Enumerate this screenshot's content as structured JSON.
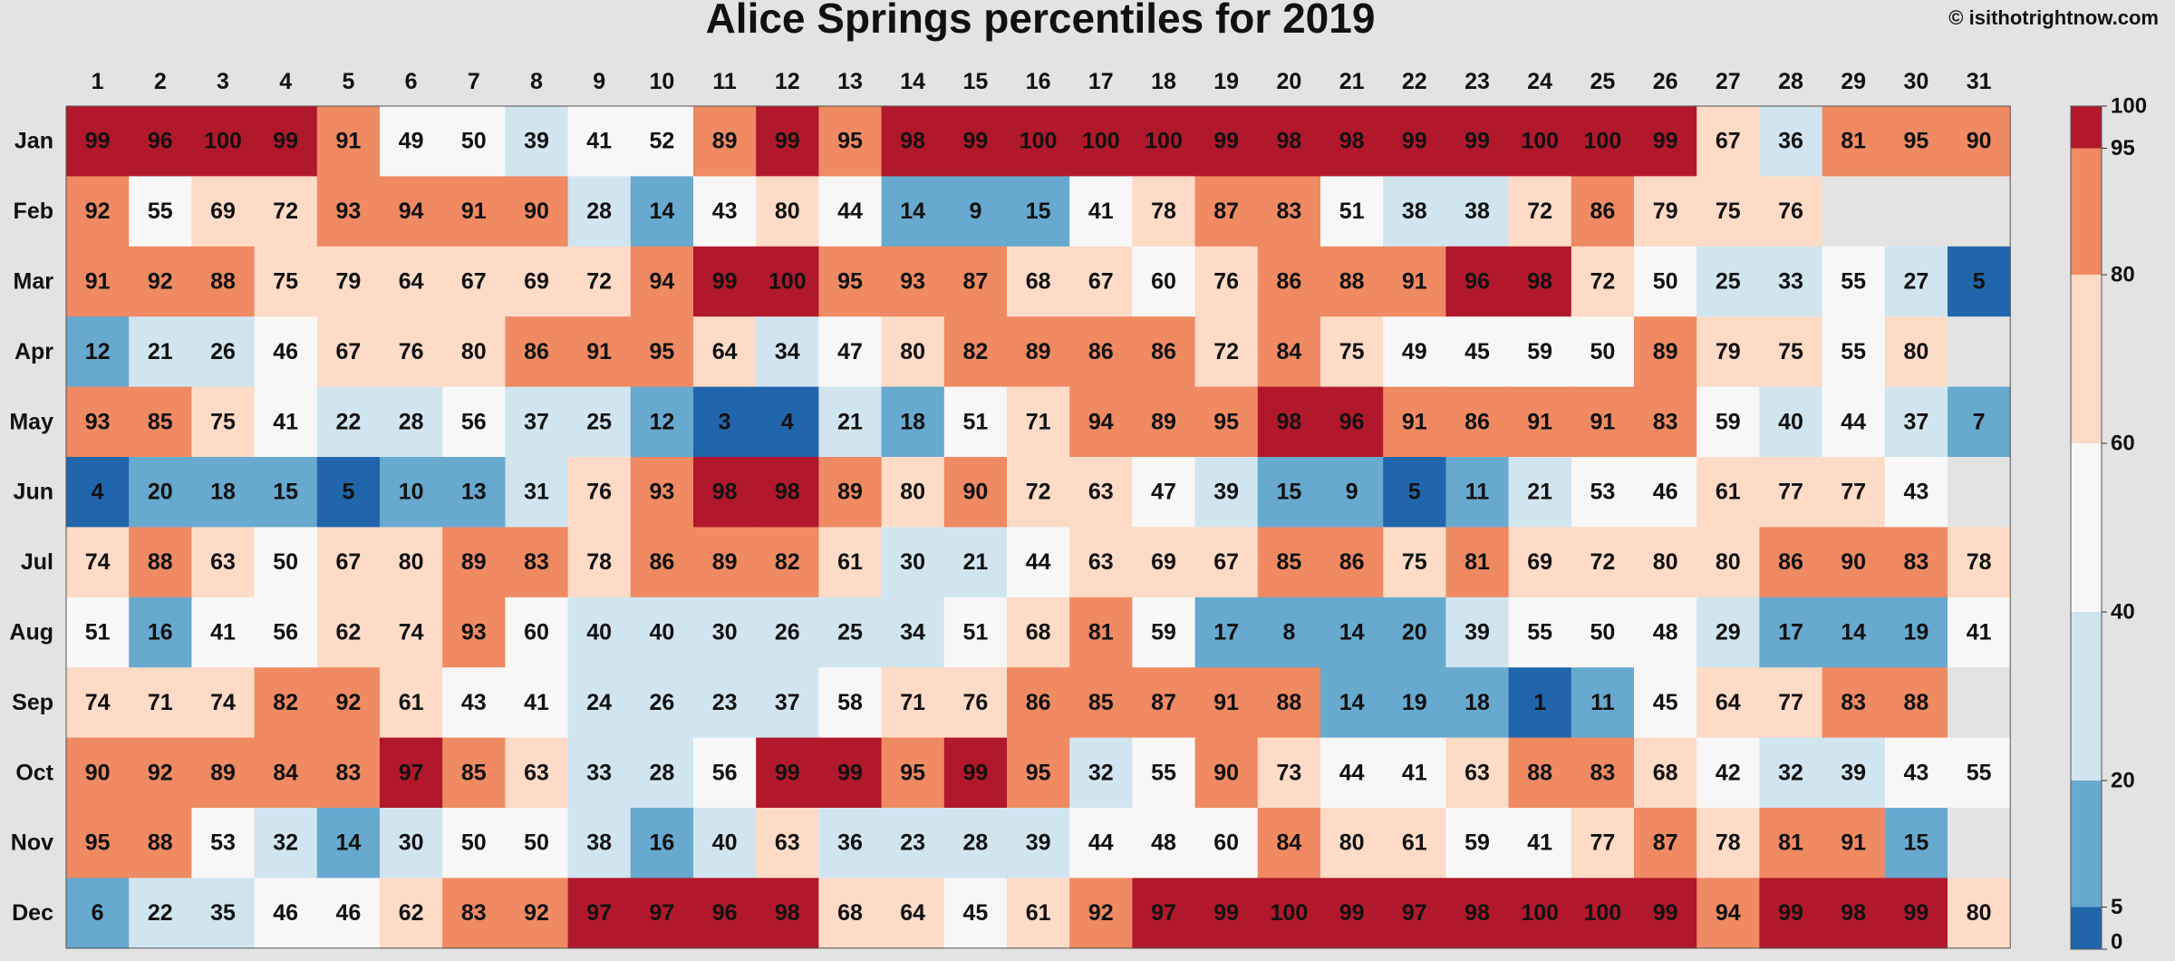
{
  "chart_data": {
    "type": "heatmap",
    "title": "Alice Springs percentiles for 2019",
    "credit": "© isithotrightnow.com",
    "x_categories": [
      "1",
      "2",
      "3",
      "4",
      "5",
      "6",
      "7",
      "8",
      "9",
      "10",
      "11",
      "12",
      "13",
      "14",
      "15",
      "16",
      "17",
      "18",
      "19",
      "20",
      "21",
      "22",
      "23",
      "24",
      "25",
      "26",
      "27",
      "28",
      "29",
      "30",
      "31"
    ],
    "y_categories": [
      "Jan",
      "Feb",
      "Mar",
      "Apr",
      "May",
      "Jun",
      "Jul",
      "Aug",
      "Sep",
      "Oct",
      "Nov",
      "Dec"
    ],
    "values": [
      [
        99,
        96,
        100,
        99,
        91,
        49,
        50,
        39,
        41,
        52,
        89,
        99,
        95,
        98,
        99,
        100,
        100,
        100,
        99,
        98,
        98,
        99,
        99,
        100,
        100,
        99,
        67,
        36,
        81,
        95,
        90
      ],
      [
        92,
        55,
        69,
        72,
        93,
        94,
        91,
        90,
        28,
        14,
        43,
        80,
        44,
        14,
        9,
        15,
        41,
        78,
        87,
        83,
        51,
        38,
        38,
        72,
        86,
        79,
        75,
        76,
        null,
        null,
        null
      ],
      [
        91,
        92,
        88,
        75,
        79,
        64,
        67,
        69,
        72,
        94,
        99,
        100,
        95,
        93,
        87,
        68,
        67,
        60,
        76,
        86,
        88,
        91,
        96,
        98,
        72,
        50,
        25,
        33,
        55,
        27,
        5
      ],
      [
        12,
        21,
        26,
        46,
        67,
        76,
        80,
        86,
        91,
        95,
        64,
        34,
        47,
        80,
        82,
        89,
        86,
        86,
        72,
        84,
        75,
        49,
        45,
        59,
        50,
        89,
        79,
        75,
        55,
        80,
        null
      ],
      [
        93,
        85,
        75,
        41,
        22,
        28,
        56,
        37,
        25,
        12,
        3,
        4,
        21,
        18,
        51,
        71,
        94,
        89,
        95,
        98,
        96,
        91,
        86,
        91,
        91,
        83,
        59,
        40,
        44,
        37,
        7
      ],
      [
        4,
        20,
        18,
        15,
        5,
        10,
        13,
        31,
        76,
        93,
        98,
        98,
        89,
        80,
        90,
        72,
        63,
        47,
        39,
        15,
        9,
        5,
        11,
        21,
        53,
        46,
        61,
        77,
        77,
        43,
        null
      ],
      [
        74,
        88,
        63,
        50,
        67,
        80,
        89,
        83,
        78,
        86,
        89,
        82,
        61,
        30,
        21,
        44,
        63,
        69,
        67,
        85,
        86,
        75,
        81,
        69,
        72,
        80,
        80,
        86,
        90,
        83,
        78
      ],
      [
        51,
        16,
        41,
        56,
        62,
        74,
        93,
        60,
        40,
        40,
        30,
        26,
        25,
        34,
        51,
        68,
        81,
        59,
        17,
        8,
        14,
        20,
        39,
        55,
        50,
        48,
        29,
        17,
        14,
        19,
        41
      ],
      [
        74,
        71,
        74,
        82,
        92,
        61,
        43,
        41,
        24,
        26,
        23,
        37,
        58,
        71,
        76,
        86,
        85,
        87,
        91,
        88,
        14,
        19,
        18,
        1,
        11,
        45,
        64,
        77,
        83,
        88,
        null
      ],
      [
        90,
        92,
        89,
        84,
        83,
        97,
        85,
        63,
        33,
        28,
        56,
        99,
        99,
        95,
        99,
        95,
        32,
        55,
        90,
        73,
        44,
        41,
        63,
        88,
        83,
        68,
        42,
        32,
        39,
        43,
        55
      ],
      [
        95,
        88,
        53,
        32,
        14,
        30,
        50,
        50,
        38,
        16,
        40,
        63,
        36,
        23,
        28,
        39,
        44,
        48,
        60,
        84,
        80,
        61,
        59,
        41,
        77,
        87,
        78,
        81,
        91,
        15,
        null
      ],
      [
        6,
        22,
        35,
        46,
        46,
        62,
        83,
        92,
        97,
        97,
        96,
        98,
        68,
        64,
        45,
        61,
        92,
        97,
        99,
        100,
        99,
        97,
        98,
        100,
        100,
        99,
        94,
        99,
        98,
        99,
        80
      ]
    ],
    "color_scale": {
      "bins": [
        {
          "min": 0,
          "max": 5,
          "color": "#2166ac"
        },
        {
          "min": 5,
          "max": 20,
          "color": "#67a9cf"
        },
        {
          "min": 20,
          "max": 40,
          "color": "#d1e5f0"
        },
        {
          "min": 40,
          "max": 60,
          "color": "#f7f7f7"
        },
        {
          "min": 60,
          "max": 80,
          "color": "#fddbc7"
        },
        {
          "min": 80,
          "max": 95,
          "color": "#ef8a62"
        },
        {
          "min": 95,
          "max": 100,
          "color": "#b2182b"
        }
      ],
      "tick_labels": [
        "0",
        "5",
        "20",
        "40",
        "60",
        "80",
        "95",
        "100"
      ],
      "missing_color": "#e3e3e3"
    }
  }
}
